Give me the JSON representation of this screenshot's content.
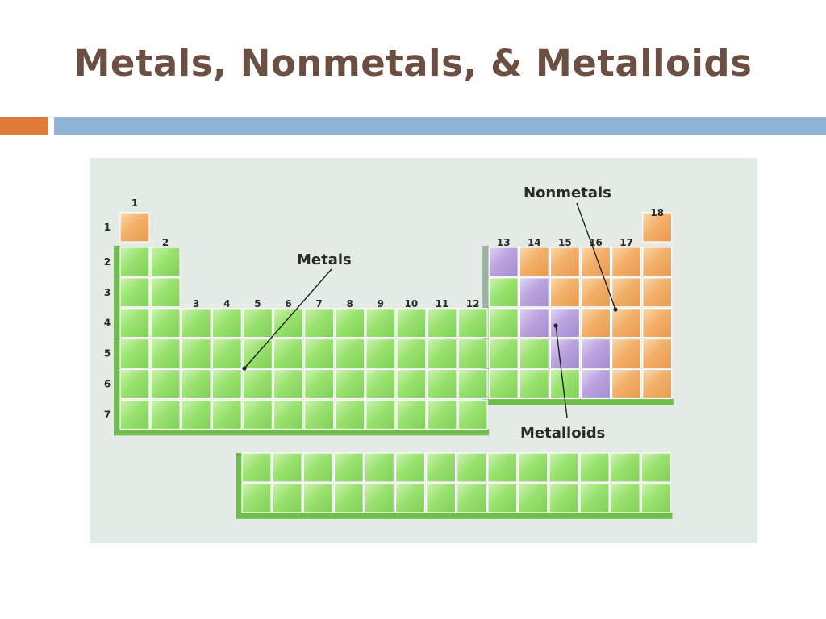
{
  "slide": {
    "title": "Metals, Nonmetals, & Metalloids",
    "accent_orange": "#e07b3a",
    "accent_blue": "#8fb4d4"
  },
  "diagram": {
    "background": "#e4eae4",
    "colors": {
      "metal": "#8fdc66",
      "nonmetal": "#f2ad63",
      "metalloid": "#b8a0da"
    },
    "labels": {
      "metals": "Metals",
      "nonmetals": "Nonmetals",
      "metalloids": "Metalloids"
    },
    "group_numbers": [
      "1",
      "2",
      "3",
      "4",
      "5",
      "6",
      "7",
      "8",
      "9",
      "10",
      "11",
      "12",
      "13",
      "14",
      "15",
      "16",
      "17",
      "18"
    ],
    "period_numbers": [
      "1",
      "2",
      "3",
      "4",
      "5",
      "6",
      "7"
    ],
    "metalloid_cells": [
      [
        2,
        13
      ],
      [
        3,
        14
      ],
      [
        4,
        14
      ],
      [
        4,
        15
      ],
      [
        5,
        15
      ],
      [
        5,
        16
      ],
      [
        6,
        16
      ]
    ],
    "nonmetal_cells": [
      [
        1,
        1
      ],
      [
        1,
        18
      ],
      [
        2,
        14
      ],
      [
        2,
        15
      ],
      [
        2,
        16
      ],
      [
        2,
        17
      ],
      [
        2,
        18
      ],
      [
        3,
        15
      ],
      [
        3,
        16
      ],
      [
        3,
        17
      ],
      [
        3,
        18
      ],
      [
        4,
        16
      ],
      [
        4,
        17
      ],
      [
        4,
        18
      ],
      [
        5,
        17
      ],
      [
        5,
        18
      ],
      [
        6,
        17
      ],
      [
        6,
        18
      ]
    ]
  }
}
